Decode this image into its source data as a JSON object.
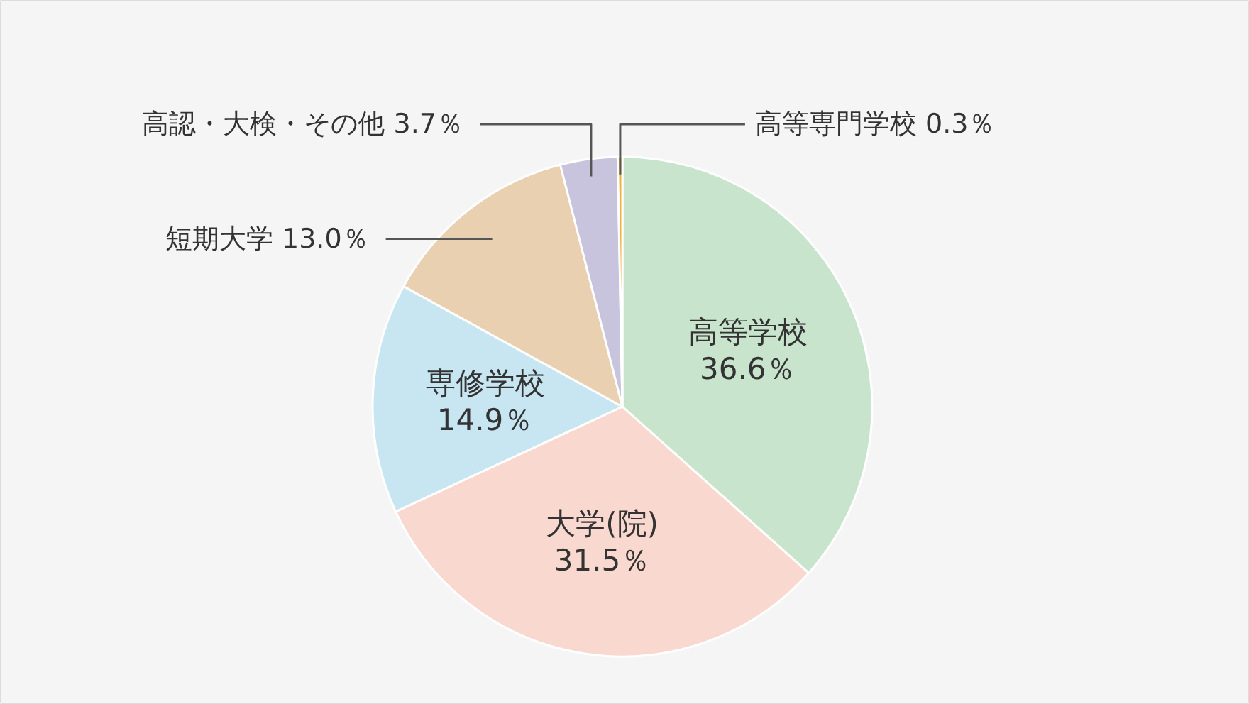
{
  "chart_data": {
    "type": "pie",
    "categories": [
      "高等学校",
      "大学(院)",
      "専修学校",
      "短期大学",
      "高認・大検・その他",
      "高等専門学校"
    ],
    "values": [
      36.6,
      31.5,
      14.9,
      13.0,
      3.7,
      0.3
    ],
    "colors": [
      "#c8e4cc",
      "#f9d8d0",
      "#c8e6f2",
      "#e8d0b0",
      "#c8c4de",
      "#f0b040"
    ],
    "value_labels": [
      "36.6％",
      "31.5％",
      "14.9％",
      "13.0％",
      "3.7％",
      "0.3％"
    ]
  }
}
